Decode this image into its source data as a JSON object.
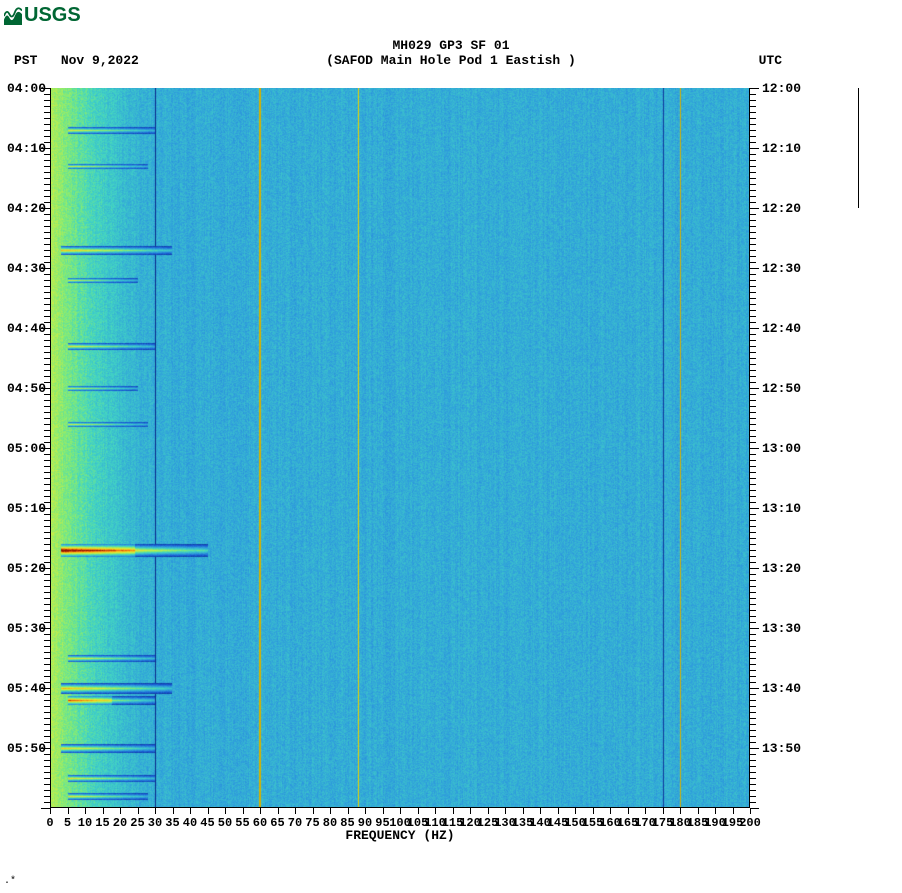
{
  "logo_text": "USGS",
  "logo_color": "#006633",
  "title_line1": "MH029 GP3 SF 01",
  "title_line2": "(SAFOD Main Hole Pod 1 Eastish )",
  "left_tz": "PST",
  "date_str": "Nov 9,2022",
  "right_tz": "UTC",
  "xaxis_label": "FREQUENCY (HZ)",
  "footmark": ".*",
  "spectrogram": {
    "type": "spectrogram",
    "freq_min": 0,
    "freq_max": 200,
    "freq_tick_step": 5,
    "time_start_left_min": 240,
    "time_start_right_min": 720,
    "time_span_min": 120,
    "time_major_step_min": 10,
    "time_minor_step_min": 1,
    "left_labels": [
      "04:00",
      "04:10",
      "04:20",
      "04:30",
      "04:40",
      "04:50",
      "05:00",
      "05:10",
      "05:20",
      "05:30",
      "05:40",
      "05:50"
    ],
    "right_labels": [
      "12:00",
      "12:10",
      "12:20",
      "12:30",
      "12:40",
      "12:50",
      "13:00",
      "13:10",
      "13:20",
      "13:30",
      "13:40",
      "13:50"
    ],
    "x_labels": [
      "0",
      "5",
      "10",
      "15",
      "20",
      "25",
      "30",
      "35",
      "40",
      "45",
      "50",
      "55",
      "60",
      "65",
      "70",
      "75",
      "80",
      "85",
      "90",
      "95",
      "100",
      "105",
      "110",
      "115",
      "120",
      "125",
      "130",
      "135",
      "140",
      "145",
      "150",
      "155",
      "160",
      "165",
      "170",
      "175",
      "180",
      "185",
      "190",
      "195",
      "200"
    ],
    "colormap": [
      [
        0.0,
        "#0a2a8a"
      ],
      [
        0.15,
        "#1a5bd6"
      ],
      [
        0.3,
        "#2f9edc"
      ],
      [
        0.45,
        "#42d4c4"
      ],
      [
        0.55,
        "#7eea7a"
      ],
      [
        0.68,
        "#d6ef3e"
      ],
      [
        0.8,
        "#f7c21a"
      ],
      [
        0.9,
        "#f26a12"
      ],
      [
        1.0,
        "#8a0e00"
      ]
    ],
    "background_base_level": 0.34,
    "low_freq_boost": {
      "freq_end": 35,
      "peak_level": 0.62
    },
    "vlines": [
      {
        "freq": 30,
        "color": "#0a2a8a",
        "width": 1
      },
      {
        "freq": 60,
        "color": "#d6b000",
        "width": 2
      },
      {
        "freq": 88,
        "color": "#e8d000",
        "width": 1
      },
      {
        "freq": 175,
        "color": "#103a9a",
        "width": 1
      },
      {
        "freq": 180,
        "color": "#d6b000",
        "width": 1
      }
    ],
    "events": [
      {
        "time_min": 247,
        "freq_start": 5,
        "freq_end": 30,
        "level": 0.72,
        "thickness": 3
      },
      {
        "time_min": 253,
        "freq_start": 5,
        "freq_end": 28,
        "level": 0.7,
        "thickness": 2
      },
      {
        "time_min": 267,
        "freq_start": 3,
        "freq_end": 35,
        "level": 0.8,
        "thickness": 4
      },
      {
        "time_min": 272,
        "freq_start": 5,
        "freq_end": 25,
        "level": 0.68,
        "thickness": 2
      },
      {
        "time_min": 283,
        "freq_start": 5,
        "freq_end": 30,
        "level": 0.72,
        "thickness": 3
      },
      {
        "time_min": 290,
        "freq_start": 5,
        "freq_end": 25,
        "level": 0.68,
        "thickness": 2
      },
      {
        "time_min": 296,
        "freq_start": 5,
        "freq_end": 28,
        "level": 0.7,
        "thickness": 2
      },
      {
        "time_min": 317,
        "freq_start": 3,
        "freq_end": 45,
        "level": 0.95,
        "thickness": 6,
        "hot": true
      },
      {
        "time_min": 335,
        "freq_start": 5,
        "freq_end": 30,
        "level": 0.74,
        "thickness": 3
      },
      {
        "time_min": 340,
        "freq_start": 3,
        "freq_end": 35,
        "level": 0.82,
        "thickness": 5
      },
      {
        "time_min": 342,
        "freq_start": 5,
        "freq_end": 30,
        "level": 0.78,
        "thickness": 4,
        "hot": true
      },
      {
        "time_min": 350,
        "freq_start": 3,
        "freq_end": 30,
        "level": 0.76,
        "thickness": 4
      },
      {
        "time_min": 355,
        "freq_start": 5,
        "freq_end": 30,
        "level": 0.74,
        "thickness": 3
      },
      {
        "time_min": 358,
        "freq_start": 5,
        "freq_end": 28,
        "level": 0.72,
        "thickness": 3
      }
    ],
    "plot_bg": "#ffffff",
    "tick_color": "#000000",
    "label_fontsize": 13,
    "xlabel_fontsize": 12
  }
}
